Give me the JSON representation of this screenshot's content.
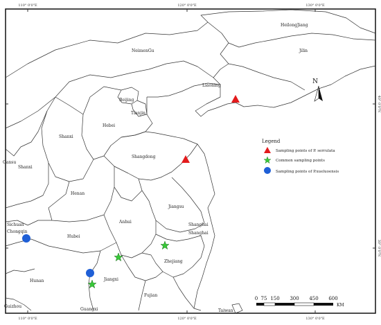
{
  "graticule": {
    "lon_top": [
      "110° 0'0\"E",
      "120° 0'0\"E",
      "130° 0'0\"E"
    ],
    "lon_bottom": [
      "110° 0'0\"E",
      "120° 0'0\"E",
      "130° 0'0\"E"
    ],
    "lat_right": [
      "40° 0'0\"N",
      "30° 0'0\"N"
    ]
  },
  "provinces": [
    {
      "id": "heilongjiang",
      "label": "HeilongJiang"
    },
    {
      "id": "jilin",
      "label": "Jilin"
    },
    {
      "id": "neimengu",
      "label": "NeimenGu"
    },
    {
      "id": "liaoning",
      "label": "Liaoning"
    },
    {
      "id": "beijing",
      "label": "Beijing"
    },
    {
      "id": "tianjin",
      "label": "Tianjin"
    },
    {
      "id": "hebei",
      "label": "Hebei"
    },
    {
      "id": "shanxi",
      "label": "Shanxi"
    },
    {
      "id": "gansu",
      "label": "Gansu"
    },
    {
      "id": "shaanxi",
      "label": "Shanxi"
    },
    {
      "id": "shangdong",
      "label": "Shangdong"
    },
    {
      "id": "henan",
      "label": "Henan"
    },
    {
      "id": "jiangsu",
      "label": "Jiangsu"
    },
    {
      "id": "shanghai1",
      "label": "Shanghai"
    },
    {
      "id": "shanghai2",
      "label": "Shanghai"
    },
    {
      "id": "sichuan",
      "label": "Sichuan"
    },
    {
      "id": "chongqin",
      "label": "Chongqin"
    },
    {
      "id": "hubei",
      "label": "Hubei"
    },
    {
      "id": "anhui",
      "label": "Anhui"
    },
    {
      "id": "zhejiang",
      "label": "Zhejiang"
    },
    {
      "id": "hunan",
      "label": "Hunan"
    },
    {
      "id": "jiangxi",
      "label": "Jiangxi"
    },
    {
      "id": "fujian",
      "label": "Fujian"
    },
    {
      "id": "guizhou",
      "label": "Guizhou"
    },
    {
      "id": "guangxi",
      "label": "Guangxi"
    },
    {
      "id": "taiwan",
      "label": "Taiwan"
    }
  ],
  "legend": {
    "title": "Legend",
    "items": [
      {
        "symbol": "triangle",
        "color": "#e31a1c",
        "label": "Sampling points of P. serrulata"
      },
      {
        "symbol": "star",
        "color": "#38c938",
        "label": "Common sampling points"
      },
      {
        "symbol": "circle",
        "color": "#1f5fd6",
        "label": "Sampling points of P.xueluoensis"
      }
    ]
  },
  "north_arrow": {
    "label": "N"
  },
  "scale_bar": {
    "ticks": [
      "0",
      "75",
      "150",
      "300",
      "450",
      "600"
    ],
    "unit": "KM"
  },
  "colors": {
    "triangle": "#e31a1c",
    "star": "#38c938",
    "circle": "#1f5fd6",
    "boundary": "#333333"
  }
}
